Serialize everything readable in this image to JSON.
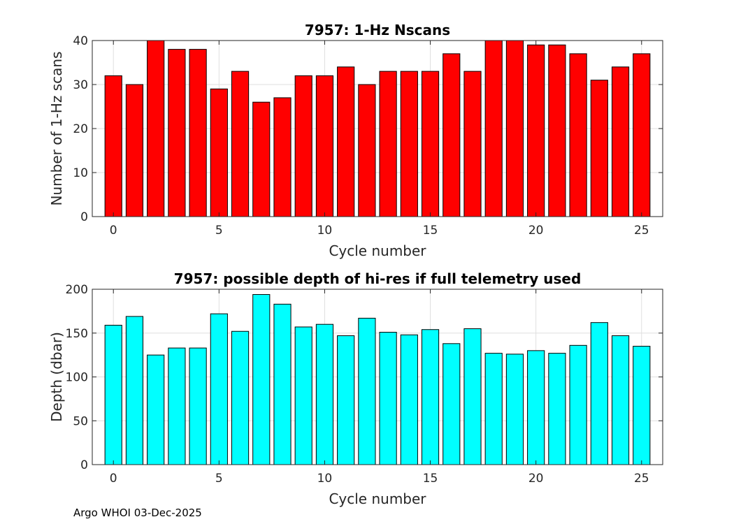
{
  "footer": "Argo WHOI 03-Dec-2025",
  "chart_data": [
    {
      "type": "bar",
      "title": "7957: 1-Hz Nscans",
      "xlabel": "Cycle number",
      "ylabel": "Number of 1-Hz scans",
      "x": [
        0,
        1,
        2,
        3,
        4,
        5,
        6,
        7,
        8,
        9,
        10,
        11,
        12,
        13,
        14,
        15,
        16,
        17,
        18,
        19,
        20,
        21,
        22,
        23,
        24,
        25
      ],
      "values": [
        32,
        30,
        40,
        38,
        38,
        29,
        33,
        26,
        27,
        32,
        32,
        34,
        30,
        33,
        33,
        33,
        37,
        33,
        40,
        40,
        39,
        39,
        37,
        31,
        34,
        37
      ],
      "xlim": [
        -1,
        26
      ],
      "ylim": [
        0,
        40
      ],
      "xticks": [
        0,
        5,
        10,
        15,
        20,
        25
      ],
      "yticks": [
        0,
        10,
        20,
        30,
        40
      ],
      "bar_color": "#ff0000",
      "grid": true
    },
    {
      "type": "bar",
      "title": "7957: possible depth of hi-res if full telemetry used",
      "xlabel": "Cycle number",
      "ylabel": "Depth (dbar)",
      "x": [
        0,
        1,
        2,
        3,
        4,
        5,
        6,
        7,
        8,
        9,
        10,
        11,
        12,
        13,
        14,
        15,
        16,
        17,
        18,
        19,
        20,
        21,
        22,
        23,
        24,
        25
      ],
      "values": [
        159,
        169,
        125,
        133,
        133,
        172,
        152,
        194,
        183,
        157,
        160,
        147,
        167,
        151,
        148,
        154,
        138,
        155,
        127,
        126,
        130,
        127,
        136,
        162,
        147,
        135
      ],
      "xlim": [
        -1,
        26
      ],
      "ylim": [
        0,
        200
      ],
      "xticks": [
        0,
        5,
        10,
        15,
        20,
        25
      ],
      "yticks": [
        0,
        50,
        100,
        150,
        200
      ],
      "bar_color": "#00ffff",
      "grid": true
    }
  ]
}
